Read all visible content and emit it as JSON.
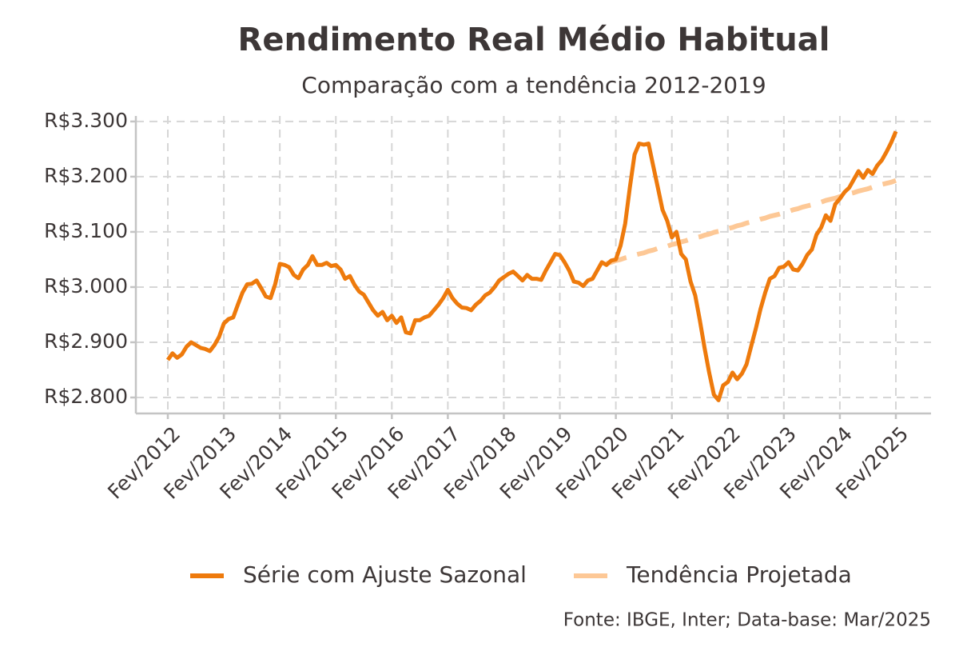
{
  "chart_data": {
    "type": "line",
    "title": "Rendimento Real Médio Habitual",
    "subtitle": "Comparação com a tendência 2012-2019",
    "source": "Fonte: IBGE, Inter; Data-base: Mar/2025",
    "categories": [
      "Fev/2012",
      null,
      null,
      null,
      null,
      null,
      null,
      null,
      null,
      null,
      null,
      null,
      "Fev/2013",
      null,
      null,
      null,
      null,
      null,
      null,
      null,
      null,
      null,
      null,
      null,
      "Fev/2014",
      null,
      null,
      null,
      null,
      null,
      null,
      null,
      null,
      null,
      null,
      null,
      "Fev/2015",
      null,
      null,
      null,
      null,
      null,
      null,
      null,
      null,
      null,
      null,
      null,
      "Fev/2016",
      null,
      null,
      null,
      null,
      null,
      null,
      null,
      null,
      null,
      null,
      null,
      "Fev/2017",
      null,
      null,
      null,
      null,
      null,
      null,
      null,
      null,
      null,
      null,
      null,
      "Fev/2018",
      null,
      null,
      null,
      null,
      null,
      null,
      null,
      null,
      null,
      null,
      null,
      "Fev/2019",
      null,
      null,
      null,
      null,
      null,
      null,
      null,
      null,
      null,
      null,
      null,
      "Fev/2020",
      null,
      null,
      null,
      null,
      null,
      null,
      null,
      null,
      null,
      null,
      null,
      "Fev/2021",
      null,
      null,
      null,
      null,
      null,
      null,
      null,
      null,
      null,
      null,
      null,
      "Fev/2022",
      null,
      null,
      null,
      null,
      null,
      null,
      null,
      null,
      null,
      null,
      null,
      "Fev/2023",
      null,
      null,
      null,
      null,
      null,
      null,
      null,
      null,
      null,
      null,
      null,
      "Fev/2024",
      null,
      null,
      null,
      null,
      null,
      null,
      null,
      null,
      null,
      null,
      null,
      "Fev/2025"
    ],
    "series": [
      {
        "name": "Série com Ajuste Sazonal",
        "color": "#ee7a0c",
        "dashed": false,
        "values": [
          2868,
          2880,
          2872,
          2878,
          2892,
          2900,
          2895,
          2890,
          2888,
          2884,
          2895,
          2910,
          2934,
          2942,
          2945,
          2968,
          2990,
          3005,
          3006,
          3012,
          2998,
          2983,
          2980,
          3005,
          3042,
          3040,
          3036,
          3022,
          3016,
          3032,
          3040,
          3056,
          3040,
          3040,
          3044,
          3038,
          3040,
          3032,
          3015,
          3020,
          3004,
          2992,
          2986,
          2972,
          2958,
          2948,
          2955,
          2940,
          2948,
          2935,
          2945,
          2918,
          2916,
          2940,
          2940,
          2945,
          2948,
          2958,
          2968,
          2980,
          2995,
          2980,
          2970,
          2963,
          2962,
          2958,
          2968,
          2975,
          2985,
          2990,
          3000,
          3012,
          3018,
          3024,
          3028,
          3020,
          3012,
          3022,
          3015,
          3015,
          3013,
          3030,
          3045,
          3060,
          3058,
          3045,
          3030,
          3010,
          3008,
          3002,
          3012,
          3015,
          3030,
          3045,
          3040,
          3048,
          3050,
          3075,
          3115,
          3180,
          3240,
          3260,
          3258,
          3260,
          3220,
          3180,
          3140,
          3120,
          3090,
          3100,
          3060,
          3050,
          3010,
          2985,
          2940,
          2890,
          2845,
          2805,
          2795,
          2822,
          2828,
          2845,
          2833,
          2843,
          2860,
          2893,
          2925,
          2960,
          2990,
          3015,
          3020,
          3035,
          3037,
          3045,
          3032,
          3030,
          3042,
          3058,
          3068,
          3095,
          3108,
          3130,
          3120,
          3150,
          3160,
          3172,
          3180,
          3195,
          3210,
          3198,
          3212,
          3205,
          3220,
          3230,
          3245,
          3262,
          3282
        ]
      },
      {
        "name": "Tendência Projetada",
        "color": "#fdc896",
        "dashed": true,
        "values": [
          null,
          null,
          null,
          null,
          null,
          null,
          null,
          null,
          null,
          null,
          null,
          null,
          null,
          null,
          null,
          null,
          null,
          null,
          null,
          null,
          null,
          null,
          null,
          null,
          null,
          null,
          null,
          null,
          null,
          null,
          null,
          null,
          null,
          null,
          null,
          null,
          null,
          null,
          null,
          null,
          null,
          null,
          null,
          null,
          null,
          null,
          null,
          null,
          null,
          null,
          null,
          null,
          null,
          null,
          null,
          null,
          null,
          null,
          null,
          null,
          null,
          null,
          null,
          null,
          null,
          null,
          null,
          null,
          null,
          null,
          null,
          null,
          null,
          null,
          null,
          null,
          null,
          null,
          null,
          null,
          null,
          null,
          null,
          null,
          null,
          null,
          null,
          null,
          null,
          null,
          null,
          null,
          null,
          null,
          3043,
          3045,
          3048,
          3050,
          3053,
          3055,
          3058,
          3060,
          3062,
          3065,
          3067,
          3070,
          3072,
          3074,
          3077,
          3079,
          3082,
          3084,
          3087,
          3089,
          3091,
          3094,
          3096,
          3099,
          3101,
          3103,
          3106,
          3108,
          3111,
          3113,
          3116,
          3118,
          3120,
          3123,
          3125,
          3128,
          3130,
          3132,
          3135,
          3137,
          3140,
          3142,
          3145,
          3147,
          3149,
          3152,
          3154,
          3157,
          3159,
          3161,
          3164,
          3166,
          3169,
          3171,
          3174,
          3176,
          3178,
          3181,
          3183,
          3186,
          3188,
          3190,
          3193
        ]
      }
    ],
    "ylim": [
      2771,
      3310
    ],
    "yticks": [
      {
        "value": 2800,
        "label": "R$2.800"
      },
      {
        "value": 2900,
        "label": "R$2.900"
      },
      {
        "value": 3000,
        "label": "R$3.000"
      },
      {
        "value": 3100,
        "label": "R$3.100"
      },
      {
        "value": 3200,
        "label": "R$3.200"
      },
      {
        "value": 3300,
        "label": "R$3.300"
      }
    ],
    "grid": true,
    "legend": "bottom"
  }
}
